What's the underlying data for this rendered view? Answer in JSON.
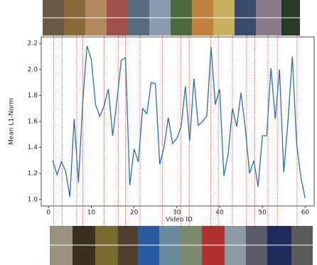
{
  "chart_data": {
    "type": "line",
    "xlabel": "Video ID",
    "ylabel": "Mean L1-Norm",
    "x": [
      1,
      2,
      3,
      4,
      5,
      6,
      7,
      8,
      9,
      10,
      11,
      12,
      13,
      14,
      15,
      16,
      17,
      18,
      19,
      20,
      21,
      22,
      23,
      24,
      25,
      26,
      27,
      28,
      29,
      30,
      31,
      32,
      33,
      34,
      35,
      36,
      37,
      38,
      39,
      40,
      41,
      42,
      43,
      44,
      45,
      46,
      47,
      48,
      49,
      50,
      51,
      52,
      53,
      54,
      55,
      56,
      57,
      58,
      59,
      60
    ],
    "series": [
      {
        "color": "#2a6fa8",
        "values": [
          1.3,
          1.19,
          1.29,
          1.22,
          1.02,
          1.62,
          1.13,
          1.75,
          2.18,
          2.08,
          1.73,
          1.64,
          1.72,
          1.85,
          1.49,
          1.76,
          2.07,
          2.09,
          1.11,
          1.39,
          1.29,
          1.7,
          1.66,
          1.9,
          1.89,
          1.27,
          1.4,
          1.63,
          1.43,
          1.47,
          1.56,
          1.87,
          1.45,
          1.93,
          1.57,
          1.6,
          1.64,
          2.17,
          1.73,
          1.85,
          1.18,
          1.35,
          1.7,
          1.56,
          1.82,
          1.55,
          1.2,
          1.3,
          1.1,
          1.49,
          1.49,
          2.01,
          1.62,
          2.0,
          1.21,
          1.61,
          2.1,
          1.43,
          1.17,
          1.01
        ]
      }
    ],
    "marker_x": [
      1.2,
      3.2,
      6.6,
      8,
      13,
      16.3,
      18,
      21.4,
      26.6,
      30.9,
      32.9,
      37.9,
      39.7,
      43,
      46.3,
      48.2,
      51.3,
      53.5,
      58.1
    ],
    "marker_color": "#e03030",
    "xlim": [
      -1.7,
      62.1
    ],
    "ylim": [
      0.95,
      2.25
    ],
    "xticks": [
      0,
      10,
      20,
      30,
      40,
      50,
      60
    ],
    "yticks": [
      {
        "value": 1,
        "label": "1.0"
      },
      {
        "value": 1.2,
        "label": "1.2"
      },
      {
        "value": 1.4,
        "label": "1.4"
      },
      {
        "value": 1.6,
        "label": "1.6"
      },
      {
        "value": 1.8,
        "label": "1.8"
      },
      {
        "value": 2,
        "label": "2.0"
      },
      {
        "value": 2.2,
        "label": "2.2"
      }
    ]
  }
}
